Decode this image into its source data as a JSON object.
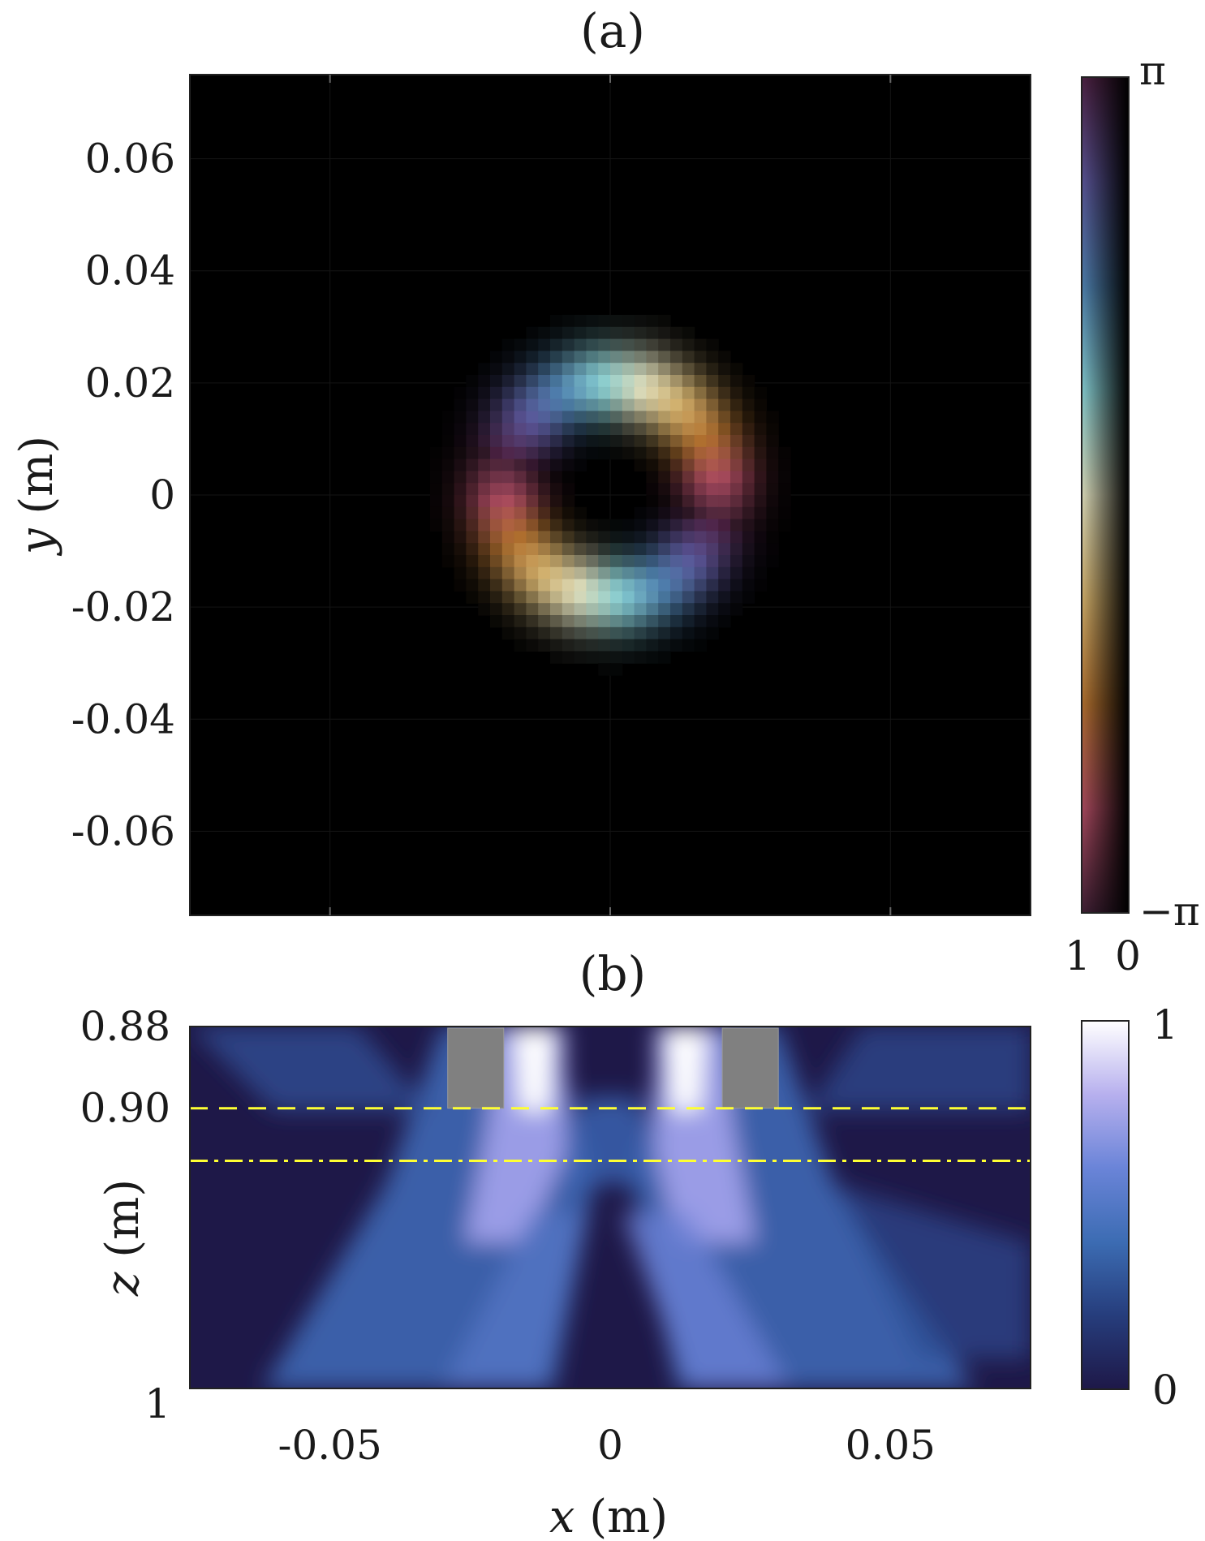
{
  "chart_data": [
    {
      "panel": "(a)",
      "type": "heatmap",
      "ylabel_var": "y",
      "ylabel_unit": "(m)",
      "xlim": [
        -0.075,
        0.075
      ],
      "ylim": [
        -0.075,
        0.075
      ],
      "y_ticks": [
        "0.06",
        "0.04",
        "0.02",
        "0",
        "-0.02",
        "-0.04",
        "-0.06"
      ],
      "y_tick_values": [
        0.06,
        0.04,
        0.02,
        0,
        -0.02,
        -0.04,
        -0.06
      ],
      "x_tick_values": [
        -0.05,
        0,
        0.05
      ],
      "field": {
        "description": "ring-shaped intensity with azimuthal phase",
        "center": [
          0.0,
          0.001
        ],
        "ring_radius": 0.019,
        "ring_width": 0.007,
        "phase_winding": 2
      },
      "colorbar": {
        "top_label": "π",
        "bottom_label": "−π",
        "bottom_left_label": "1",
        "bottom_right_label": "0",
        "colors": [
          "#3d1f33",
          "#a1465a",
          "#a86a2c",
          "#c6a564",
          "#d2d2b2",
          "#7fc2c6",
          "#4a7aa6",
          "#55508f",
          "#4a2040"
        ]
      }
    },
    {
      "panel": "(b)",
      "type": "heatmap",
      "xlabel_var": "x",
      "xlabel_unit": "(m)",
      "ylabel_var": "z",
      "ylabel_unit": "(m)",
      "xlim": [
        -0.075,
        0.075
      ],
      "ylim": [
        0.88,
        1.0
      ],
      "x_ticks": [
        "-0.05",
        "0",
        "0.05"
      ],
      "x_tick_values": [
        -0.05,
        0,
        0.05
      ],
      "y_ticks": [
        "0.88",
        "0.90",
        "1"
      ],
      "y_tick_values": [
        0.876,
        0.904,
        1.0
      ],
      "lines": [
        {
          "style": "dashed",
          "color": "#ffff33",
          "z": 0.904
        },
        {
          "style": "dash-dot",
          "color": "#ffff33",
          "z": 0.922
        }
      ],
      "obstacles": [
        {
          "x": [
            -0.029,
            -0.019
          ],
          "z": [
            0.876,
            0.904
          ],
          "color": "#808080"
        },
        {
          "x": [
            0.02,
            0.03
          ],
          "z": [
            0.876,
            0.904
          ],
          "color": "#808080"
        }
      ],
      "colorbar": {
        "top_label": "1",
        "bottom_label": "0",
        "colors": [
          "#1e1848",
          "#263d7c",
          "#3c6cb3",
          "#6a84d8",
          "#b7b0ee",
          "#ffffff"
        ]
      }
    }
  ]
}
